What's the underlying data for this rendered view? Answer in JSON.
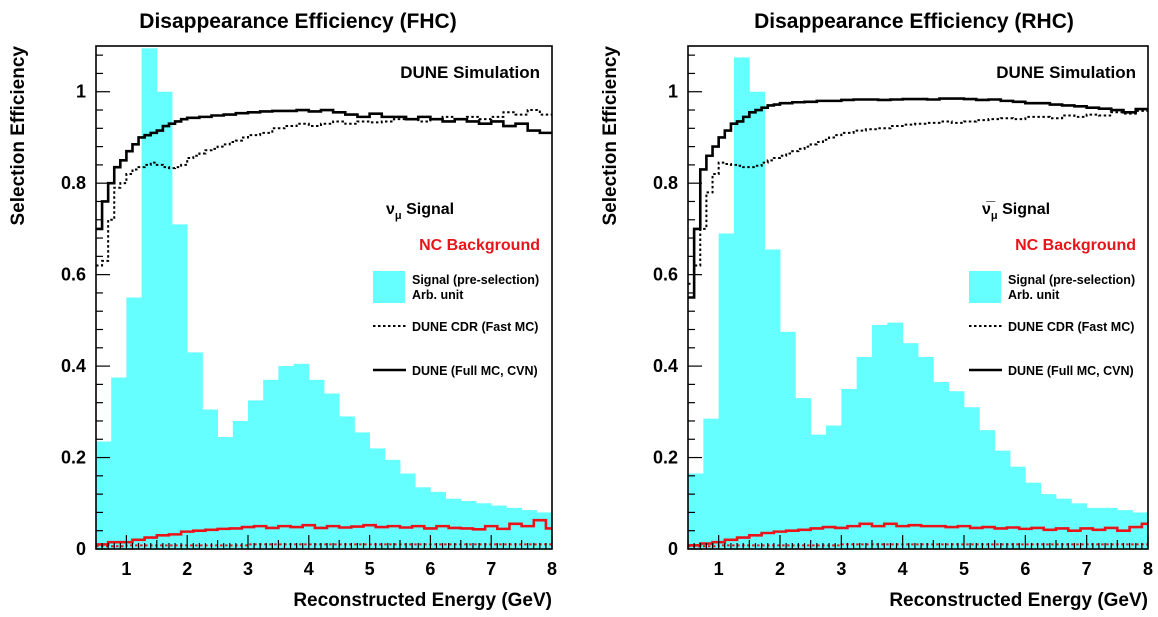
{
  "chart_data": [
    {
      "type": "bar",
      "title": "Disappearance Efficiency (FHC)",
      "xlabel": "Reconstructed Energy (GeV)",
      "ylabel": "Selection Efficiency",
      "xlim": [
        0.5,
        8.0
      ],
      "ylim": [
        0,
        1.1
      ],
      "x_ticks": [
        "1",
        "2",
        "3",
        "4",
        "5",
        "6",
        "7",
        "8"
      ],
      "y_ticks": [
        "0",
        "0.2",
        "0.4",
        "0.6",
        "0.8",
        "1"
      ],
      "grid": false,
      "legend_position": "right",
      "bin_edges": [
        0.5,
        0.75,
        1.0,
        1.25,
        1.5,
        1.75,
        2.0,
        2.25,
        2.5,
        2.75,
        3.0,
        3.25,
        3.5,
        3.75,
        4.0,
        4.25,
        4.5,
        4.75,
        5.0,
        5.25,
        5.5,
        5.75,
        6.0,
        6.25,
        6.5,
        6.75,
        7.0,
        7.25,
        7.5,
        7.75,
        8.0
      ],
      "annotation": "DUNE Simulation",
      "legend": {
        "signal": "ν",
        "signal_sub": "μ",
        "signal_suffix": " Signal",
        "background": "NC Background",
        "hist_line1": "Signal (pre-selection)",
        "hist_line2": "Arb. unit",
        "dotted": "DUNE CDR (Fast MC)",
        "solid": "DUNE (Full MC, CVN)"
      },
      "colors": {
        "histogram": "#66ffff",
        "signal_lines": "#000000",
        "background_lines": "#e8141a"
      },
      "series": [
        {
          "name": "Signal (pre-selection) Arb. unit",
          "style": "filled-histogram",
          "values": [
            0.235,
            0.375,
            0.55,
            1.095,
            1.0,
            0.71,
            0.43,
            0.305,
            0.245,
            0.28,
            0.325,
            0.37,
            0.4,
            0.405,
            0.37,
            0.34,
            0.29,
            0.255,
            0.22,
            0.195,
            0.165,
            0.135,
            0.125,
            0.11,
            0.105,
            0.1,
            0.095,
            0.09,
            0.085,
            0.08
          ]
        },
        {
          "name": "DUNE (Full MC, CVN)",
          "style": "solid-step",
          "role": "signal",
          "x": [
            0.5,
            0.6,
            0.7,
            0.8,
            0.9,
            1.0,
            1.1,
            1.2,
            1.3,
            1.4,
            1.5,
            1.6,
            1.7,
            1.8,
            1.9,
            2.0,
            2.2,
            2.4,
            2.6,
            2.8,
            3.0,
            3.2,
            3.4,
            3.6,
            3.8,
            4.0,
            4.2,
            4.4,
            4.6,
            4.8,
            5.0,
            5.2,
            5.4,
            5.6,
            5.8,
            6.0,
            6.2,
            6.4,
            6.6,
            6.8,
            7.0,
            7.2,
            7.4,
            7.6,
            7.8
          ],
          "values": [
            0.7,
            0.76,
            0.8,
            0.835,
            0.85,
            0.87,
            0.885,
            0.9,
            0.905,
            0.91,
            0.915,
            0.925,
            0.93,
            0.935,
            0.94,
            0.943,
            0.945,
            0.948,
            0.95,
            0.953,
            0.955,
            0.957,
            0.958,
            0.958,
            0.96,
            0.957,
            0.96,
            0.955,
            0.95,
            0.945,
            0.952,
            0.945,
            0.945,
            0.94,
            0.945,
            0.94,
            0.935,
            0.94,
            0.935,
            0.93,
            0.935,
            0.925,
            0.93,
            0.915,
            0.91
          ]
        },
        {
          "name": "DUNE CDR (Fast MC)",
          "style": "dotted-step",
          "role": "signal",
          "x": [
            0.5,
            0.6,
            0.7,
            0.8,
            0.9,
            1.0,
            1.1,
            1.2,
            1.3,
            1.4,
            1.5,
            1.6,
            1.7,
            1.8,
            1.9,
            2.0,
            2.1,
            2.2,
            2.3,
            2.4,
            2.5,
            2.6,
            2.7,
            2.8,
            2.9,
            3.0,
            3.2,
            3.4,
            3.6,
            3.8,
            4.0,
            4.2,
            4.4,
            4.6,
            4.8,
            5.0,
            5.2,
            5.4,
            5.6,
            5.8,
            6.0,
            6.2,
            6.4,
            6.6,
            6.8,
            7.0,
            7.2,
            7.4,
            7.6,
            7.8
          ],
          "values": [
            0.62,
            0.63,
            0.72,
            0.79,
            0.8,
            0.82,
            0.83,
            0.835,
            0.84,
            0.845,
            0.84,
            0.835,
            0.833,
            0.835,
            0.84,
            0.855,
            0.86,
            0.865,
            0.872,
            0.875,
            0.88,
            0.885,
            0.89,
            0.893,
            0.9,
            0.905,
            0.91,
            0.92,
            0.925,
            0.93,
            0.925,
            0.93,
            0.935,
            0.93,
            0.935,
            0.933,
            0.935,
            0.94,
            0.94,
            0.935,
            0.94,
            0.945,
            0.94,
            0.945,
            0.94,
            0.945,
            0.955,
            0.95,
            0.96,
            0.95
          ]
        },
        {
          "name": "DUNE (Full MC, CVN) NC",
          "style": "solid-step",
          "role": "background",
          "x": [
            0.5,
            0.7,
            0.9,
            1.1,
            1.3,
            1.5,
            1.7,
            1.9,
            2.1,
            2.3,
            2.5,
            2.7,
            2.9,
            3.1,
            3.3,
            3.5,
            3.7,
            3.9,
            4.1,
            4.3,
            4.5,
            4.7,
            4.9,
            5.1,
            5.3,
            5.5,
            5.7,
            5.9,
            6.1,
            6.3,
            6.5,
            6.7,
            6.9,
            7.1,
            7.3,
            7.5,
            7.7,
            7.9
          ],
          "values": [
            0.01,
            0.015,
            0.015,
            0.02,
            0.025,
            0.03,
            0.032,
            0.038,
            0.04,
            0.042,
            0.044,
            0.045,
            0.048,
            0.05,
            0.046,
            0.05,
            0.048,
            0.052,
            0.046,
            0.05,
            0.047,
            0.049,
            0.052,
            0.048,
            0.05,
            0.047,
            0.05,
            0.045,
            0.05,
            0.046,
            0.045,
            0.043,
            0.05,
            0.044,
            0.055,
            0.05,
            0.063,
            0.045
          ]
        },
        {
          "name": "DUNE CDR (Fast MC) NC",
          "style": "dotted-step",
          "role": "background",
          "x": [
            0.5,
            1.0,
            2.0,
            3.0,
            4.0,
            5.0,
            6.0,
            7.0
          ],
          "values": [
            0.006,
            0.008,
            0.008,
            0.01,
            0.01,
            0.01,
            0.01,
            0.01
          ]
        }
      ]
    },
    {
      "type": "bar",
      "title": "Disappearance Efficiency (RHC)",
      "xlabel": "Reconstructed Energy (GeV)",
      "ylabel": "Selection Efficiency",
      "xlim": [
        0.5,
        8.0
      ],
      "ylim": [
        0,
        1.1
      ],
      "x_ticks": [
        "1",
        "2",
        "3",
        "4",
        "5",
        "6",
        "7",
        "8"
      ],
      "y_ticks": [
        "0",
        "0.2",
        "0.4",
        "0.6",
        "0.8",
        "1"
      ],
      "grid": false,
      "legend_position": "right",
      "bin_edges": [
        0.5,
        0.75,
        1.0,
        1.25,
        1.5,
        1.75,
        2.0,
        2.25,
        2.5,
        2.75,
        3.0,
        3.25,
        3.5,
        3.75,
        4.0,
        4.25,
        4.5,
        4.75,
        5.0,
        5.25,
        5.5,
        5.75,
        6.0,
        6.25,
        6.5,
        6.75,
        7.0,
        7.25,
        7.5,
        7.75,
        8.0
      ],
      "annotation": "DUNE Simulation",
      "legend": {
        "signal": "ν̅",
        "signal_sub": "μ",
        "signal_suffix": " Signal",
        "background": "NC Background",
        "hist_line1": "Signal (pre-selection)",
        "hist_line2": "Arb. unit",
        "dotted": "DUNE CDR (Fast MC)",
        "solid": "DUNE (Full MC, CVN)"
      },
      "colors": {
        "histogram": "#66ffff",
        "signal_lines": "#000000",
        "background_lines": "#e8141a"
      },
      "series": [
        {
          "name": "Signal (pre-selection) Arb. unit",
          "style": "filled-histogram",
          "values": [
            0.165,
            0.285,
            0.69,
            1.075,
            1.0,
            0.655,
            0.475,
            0.33,
            0.25,
            0.27,
            0.35,
            0.42,
            0.49,
            0.495,
            0.45,
            0.42,
            0.365,
            0.345,
            0.31,
            0.26,
            0.215,
            0.18,
            0.145,
            0.12,
            0.11,
            0.1,
            0.09,
            0.09,
            0.085,
            0.08
          ]
        },
        {
          "name": "DUNE (Full MC, CVN)",
          "style": "solid-step",
          "role": "signal",
          "x": [
            0.5,
            0.6,
            0.7,
            0.8,
            0.9,
            1.0,
            1.1,
            1.2,
            1.3,
            1.4,
            1.5,
            1.6,
            1.7,
            1.8,
            1.9,
            2.0,
            2.2,
            2.4,
            2.6,
            2.8,
            3.0,
            3.2,
            3.4,
            3.6,
            3.8,
            4.0,
            4.2,
            4.4,
            4.6,
            4.8,
            5.0,
            5.2,
            5.4,
            5.6,
            5.8,
            6.0,
            6.2,
            6.4,
            6.6,
            6.8,
            7.0,
            7.2,
            7.4,
            7.6,
            7.8
          ],
          "values": [
            0.55,
            0.7,
            0.83,
            0.86,
            0.88,
            0.9,
            0.915,
            0.93,
            0.935,
            0.945,
            0.955,
            0.96,
            0.965,
            0.97,
            0.972,
            0.975,
            0.977,
            0.978,
            0.98,
            0.98,
            0.982,
            0.983,
            0.983,
            0.982,
            0.983,
            0.984,
            0.984,
            0.983,
            0.985,
            0.985,
            0.984,
            0.982,
            0.983,
            0.98,
            0.978,
            0.975,
            0.975,
            0.972,
            0.97,
            0.968,
            0.965,
            0.963,
            0.96,
            0.955,
            0.962
          ]
        },
        {
          "name": "DUNE CDR (Fast MC)",
          "style": "dotted-step",
          "role": "signal",
          "x": [
            0.5,
            0.6,
            0.7,
            0.8,
            0.9,
            1.0,
            1.1,
            1.2,
            1.3,
            1.4,
            1.5,
            1.6,
            1.7,
            1.8,
            1.9,
            2.0,
            2.1,
            2.2,
            2.3,
            2.4,
            2.5,
            2.6,
            2.7,
            2.8,
            2.9,
            3.0,
            3.2,
            3.4,
            3.6,
            3.8,
            4.0,
            4.2,
            4.4,
            4.6,
            4.8,
            5.0,
            5.2,
            5.4,
            5.6,
            5.8,
            6.0,
            6.2,
            6.4,
            6.6,
            6.8,
            7.0,
            7.2,
            7.4,
            7.6,
            7.8
          ],
          "values": [
            0.58,
            0.62,
            0.7,
            0.78,
            0.82,
            0.845,
            0.842,
            0.84,
            0.838,
            0.835,
            0.835,
            0.838,
            0.845,
            0.85,
            0.855,
            0.86,
            0.865,
            0.87,
            0.875,
            0.88,
            0.885,
            0.89,
            0.895,
            0.9,
            0.905,
            0.91,
            0.915,
            0.918,
            0.92,
            0.925,
            0.928,
            0.93,
            0.932,
            0.935,
            0.932,
            0.935,
            0.938,
            0.94,
            0.942,
            0.94,
            0.945,
            0.945,
            0.942,
            0.948,
            0.945,
            0.95,
            0.948,
            0.955,
            0.952,
            0.958
          ]
        },
        {
          "name": "DUNE (Full MC, CVN) NC",
          "style": "solid-step",
          "role": "background",
          "x": [
            0.5,
            0.7,
            0.9,
            1.1,
            1.3,
            1.5,
            1.7,
            1.9,
            2.1,
            2.3,
            2.5,
            2.7,
            2.9,
            3.1,
            3.3,
            3.5,
            3.7,
            3.9,
            4.1,
            4.3,
            4.5,
            4.7,
            4.9,
            5.1,
            5.3,
            5.5,
            5.7,
            5.9,
            6.1,
            6.3,
            6.5,
            6.7,
            6.9,
            7.1,
            7.3,
            7.5,
            7.7,
            7.9
          ],
          "values": [
            0.008,
            0.012,
            0.015,
            0.02,
            0.025,
            0.03,
            0.035,
            0.038,
            0.04,
            0.042,
            0.045,
            0.048,
            0.046,
            0.05,
            0.055,
            0.05,
            0.055,
            0.05,
            0.052,
            0.05,
            0.05,
            0.048,
            0.05,
            0.046,
            0.048,
            0.045,
            0.047,
            0.044,
            0.046,
            0.042,
            0.045,
            0.04,
            0.045,
            0.042,
            0.046,
            0.04,
            0.048,
            0.055
          ]
        },
        {
          "name": "DUNE CDR (Fast MC) NC",
          "style": "dotted-step",
          "role": "background",
          "x": [
            0.5,
            1.0,
            2.0,
            3.0,
            4.0,
            5.0,
            6.0,
            7.0
          ],
          "values": [
            0.006,
            0.008,
            0.008,
            0.01,
            0.01,
            0.01,
            0.01,
            0.01
          ]
        }
      ]
    }
  ]
}
